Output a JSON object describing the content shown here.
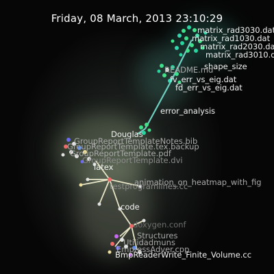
{
  "timestamp": "Friday, 08 March, 2013 23:10:29",
  "labels": {
    "l01": "matrix_rad3030.dat",
    "l02": "matrix_rad1030.dat",
    "l03": "matrix_rad2030.dat",
    "l04": "matrix_rad3010.dat",
    "l05": "shape_size",
    "l06": "README.md",
    "l07": "fv_err_vs_eig.dat",
    "l08": "fd_err_vs_eig.dat",
    "l09": "error_analysis",
    "l10": "Douglas",
    "l11": "GroupReportTemplateNotes.bib",
    "l12": "GroupReportTemplate.tex.backup",
    "l13": "GroupReportTemplate.pdf",
    "l14": "GroupReportTemplate.dvi",
    "l15": "latex",
    "l16": "animation_on_heatmap_with_fig",
    "l17": "testprogramlines.cc",
    "l18": "code",
    "l19": "doxygen.conf",
    "l20": "Structures",
    "l21": "Utilidadmuns",
    "l22": "EmpressAdver.cpp",
    "l23": "BmpReaderWrite_Finite_Volume.cc"
  }
}
